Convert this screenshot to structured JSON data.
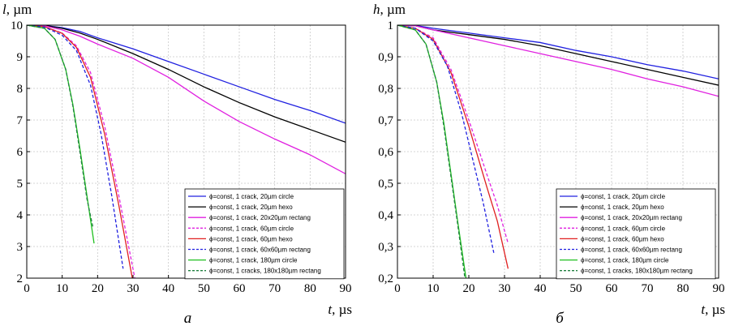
{
  "chart_data": [
    {
      "type": "line",
      "ylabel": {
        "symbol": "l",
        "unit": ", µm"
      },
      "xlabel": {
        "symbol": "t",
        "unit": ", µs"
      },
      "panel_label": "а",
      "xlim": [
        0,
        90
      ],
      "ylim": [
        2,
        10
      ],
      "xticks": [
        0,
        10,
        20,
        30,
        40,
        50,
        60,
        70,
        80,
        90
      ],
      "yticks": [
        2,
        3,
        4,
        5,
        6,
        7,
        8,
        9,
        10
      ],
      "ytick_labels": [
        "2",
        "3",
        "4",
        "5",
        "6",
        "7",
        "8",
        "9",
        "10"
      ],
      "grid": true,
      "legend_position": "bottom-right",
      "series": [
        {
          "name": "ϕ=const, 1 crack, 20µm circle",
          "color": "#2020e0",
          "dash": "solid",
          "x": [
            0,
            5,
            10,
            15,
            20,
            30,
            40,
            50,
            60,
            70,
            80,
            90
          ],
          "y": [
            10,
            9.99,
            9.92,
            9.8,
            9.6,
            9.25,
            8.85,
            8.45,
            8.05,
            7.65,
            7.3,
            6.9
          ]
        },
        {
          "name": "ϕ=const, 1 crack, 20µm hexo",
          "color": "#000000",
          "dash": "solid",
          "x": [
            0,
            5,
            10,
            15,
            20,
            30,
            40,
            50,
            60,
            70,
            80,
            90
          ],
          "y": [
            10,
            9.99,
            9.9,
            9.75,
            9.55,
            9.1,
            8.6,
            8.05,
            7.55,
            7.1,
            6.7,
            6.3
          ]
        },
        {
          "name": "ϕ=const, 1 crack, 20x20µm rectang",
          "color": "#e020e0",
          "dash": "solid",
          "x": [
            0,
            5,
            10,
            15,
            20,
            30,
            40,
            50,
            60,
            70,
            80,
            90
          ],
          "y": [
            10,
            9.98,
            9.85,
            9.65,
            9.4,
            8.95,
            8.35,
            7.6,
            6.95,
            6.4,
            5.9,
            5.3
          ]
        },
        {
          "name": "ϕ=const, 1 crack, 60µm circle",
          "color": "#e020e0",
          "dash": "dashed",
          "x": [
            0,
            5,
            10,
            14,
            18,
            22,
            26,
            30.5
          ],
          "y": [
            10,
            9.95,
            9.75,
            9.35,
            8.5,
            6.8,
            4.6,
            2.0
          ]
        },
        {
          "name": "ϕ=const, 1 crack, 60µm hexo",
          "color": "#e02020",
          "dash": "solid",
          "x": [
            0,
            5,
            10,
            14,
            18,
            22,
            26,
            29.8
          ],
          "y": [
            10,
            9.95,
            9.74,
            9.3,
            8.35,
            6.55,
            4.3,
            2.0
          ]
        },
        {
          "name": "ϕ=const, 1 crack, 60x60µm rectang",
          "color": "#2020e0",
          "dash": "dashed",
          "x": [
            0,
            5,
            10,
            14,
            18,
            21,
            24,
            27.2
          ],
          "y": [
            10,
            9.94,
            9.68,
            9.2,
            8.1,
            6.55,
            4.6,
            2.3
          ]
        },
        {
          "name": "ϕ=const, 1 crack, 180µm circle",
          "color": "#20c020",
          "dash": "solid",
          "x": [
            0,
            5,
            8,
            11,
            13,
            15,
            17,
            19
          ],
          "y": [
            10,
            9.9,
            9.55,
            8.6,
            7.5,
            6.1,
            4.6,
            3.1
          ]
        },
        {
          "name": "ϕ=const, 1 cracks, 180x180µm rectang",
          "color": "#208040",
          "dash": "dashed",
          "x": [
            0,
            5,
            8,
            11,
            13,
            15,
            17,
            18.7
          ],
          "y": [
            10,
            9.9,
            9.55,
            8.6,
            7.45,
            6.0,
            4.5,
            3.6
          ]
        }
      ]
    },
    {
      "type": "line",
      "ylabel": {
        "symbol": "h",
        "unit": ", µm"
      },
      "xlabel": {
        "symbol": "t",
        "unit": ", µs"
      },
      "panel_label": "б",
      "xlim": [
        0,
        90
      ],
      "ylim": [
        0.2,
        1.0
      ],
      "xticks": [
        0,
        10,
        20,
        30,
        40,
        50,
        60,
        70,
        80,
        90
      ],
      "yticks": [
        0.2,
        0.3,
        0.4,
        0.5,
        0.6,
        0.7,
        0.8,
        0.9,
        1.0
      ],
      "ytick_labels": [
        "0,2",
        "0,3",
        "0,4",
        "0,5",
        "0,6",
        "0,7",
        "0,8",
        "0,9",
        "1"
      ],
      "grid": true,
      "legend_position": "bottom-right",
      "series": [
        {
          "name": "ϕ=const, 1 crack, 20µm circle",
          "color": "#2020e0",
          "dash": "solid",
          "x": [
            0,
            5,
            10,
            20,
            30,
            40,
            50,
            60,
            70,
            80,
            90
          ],
          "y": [
            1.0,
            0.999,
            0.99,
            0.975,
            0.96,
            0.945,
            0.92,
            0.9,
            0.875,
            0.855,
            0.83
          ]
        },
        {
          "name": "ϕ=const, 1 crack, 20µm hexo",
          "color": "#000000",
          "dash": "solid",
          "x": [
            0,
            5,
            10,
            20,
            30,
            40,
            50,
            60,
            70,
            80,
            90
          ],
          "y": [
            1.0,
            0.998,
            0.985,
            0.97,
            0.955,
            0.935,
            0.91,
            0.885,
            0.86,
            0.835,
            0.81
          ]
        },
        {
          "name": "ϕ=const, 1 crack, 20x20µm rectang",
          "color": "#e020e0",
          "dash": "solid",
          "x": [
            0,
            5,
            10,
            20,
            30,
            40,
            50,
            60,
            70,
            80,
            90
          ],
          "y": [
            1.0,
            0.998,
            0.985,
            0.96,
            0.935,
            0.91,
            0.885,
            0.86,
            0.83,
            0.805,
            0.775
          ]
        },
        {
          "name": "ϕ=const, 1 crack, 60µm circle",
          "color": "#e020e0",
          "dash": "dashed",
          "x": [
            0,
            5,
            10,
            15,
            20,
            25,
            28,
            31
          ],
          "y": [
            1.0,
            0.99,
            0.96,
            0.86,
            0.7,
            0.53,
            0.43,
            0.31
          ]
        },
        {
          "name": "ϕ=const, 1 crack, 60µm hexo",
          "color": "#e02020",
          "dash": "solid",
          "x": [
            0,
            5,
            10,
            15,
            20,
            25,
            28,
            31
          ],
          "y": [
            1.0,
            0.99,
            0.955,
            0.85,
            0.68,
            0.49,
            0.38,
            0.23
          ]
        },
        {
          "name": "ϕ=const, 1 crack, 60x60µm rectang",
          "color": "#2020e0",
          "dash": "dashed",
          "x": [
            0,
            5,
            10,
            14,
            18,
            21,
            24,
            27
          ],
          "y": [
            1.0,
            0.99,
            0.95,
            0.87,
            0.72,
            0.58,
            0.44,
            0.28
          ]
        },
        {
          "name": "ϕ=const, 1 crack, 180µm circle",
          "color": "#20c020",
          "dash": "solid",
          "x": [
            0,
            5,
            8,
            11,
            13,
            15,
            17,
            19.2
          ],
          "y": [
            1.0,
            0.985,
            0.94,
            0.82,
            0.69,
            0.53,
            0.37,
            0.2
          ]
        },
        {
          "name": "ϕ=const, 1 cracks, 180x180µm rectang",
          "color": "#208040",
          "dash": "dashed",
          "x": [
            0,
            5,
            8,
            11,
            13,
            15,
            17,
            18.9
          ],
          "y": [
            1.0,
            0.985,
            0.94,
            0.82,
            0.68,
            0.52,
            0.36,
            0.2
          ]
        }
      ]
    }
  ]
}
